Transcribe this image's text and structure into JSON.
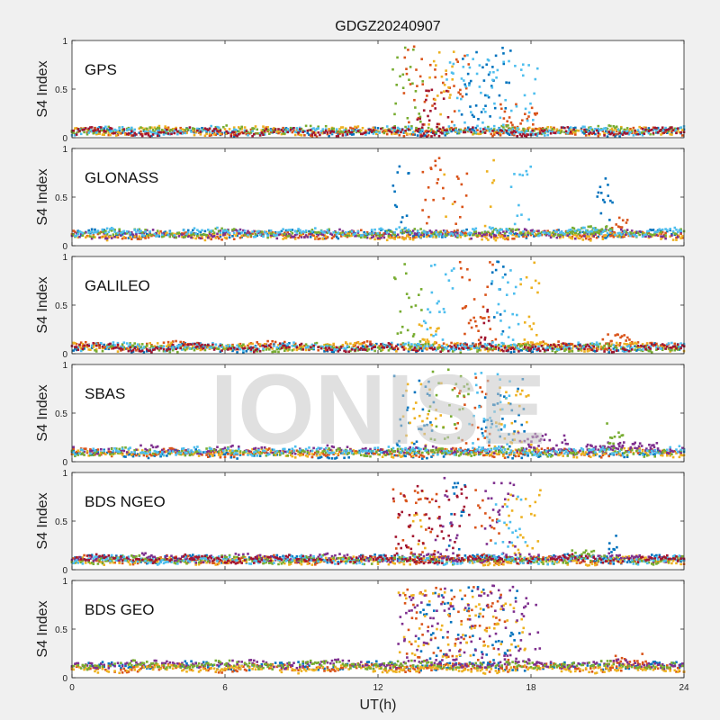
{
  "chart_data": {
    "type": "scatter",
    "title": "GDGZ20240907",
    "xlabel": "UT(h)",
    "ylabel": "S4 Index",
    "xlim": [
      0,
      24
    ],
    "ylim": [
      0,
      1
    ],
    "xticks": [
      "0",
      "6",
      "12",
      "18",
      "24"
    ],
    "yticks": [
      "0",
      "0.5",
      "1"
    ],
    "watermark": "IONISE",
    "colors": [
      "#0072bd",
      "#d95319",
      "#edb120",
      "#7e2f8e",
      "#77ac30",
      "#4dbeee",
      "#a2142f"
    ],
    "panels": [
      {
        "name": "GPS",
        "baseline": 0.07,
        "series": [
          {
            "color": 0,
            "base": 0.06,
            "bursts": [
              [
                15.2,
                17.2,
                0.95
              ]
            ]
          },
          {
            "color": 1,
            "base": 0.06,
            "bursts": [
              [
                13.0,
                15.6,
                0.95
              ],
              [
                16.8,
                18.5,
                0.35
              ]
            ]
          },
          {
            "color": 2,
            "base": 0.07,
            "bursts": [
              [
                14.0,
                15.0,
                0.9
              ]
            ]
          },
          {
            "color": 4,
            "base": 0.08,
            "bursts": [
              [
                12.6,
                13.8,
                0.95
              ]
            ]
          },
          {
            "color": 5,
            "base": 0.07,
            "bursts": [
              [
                14.7,
                18.3,
                0.85
              ]
            ]
          },
          {
            "color": 6,
            "base": 0.06,
            "bursts": [
              [
                13.5,
                14.8,
                0.5
              ]
            ]
          }
        ]
      },
      {
        "name": "GLONASS",
        "baseline": 0.12,
        "series": [
          {
            "color": 0,
            "base": 0.12,
            "bursts": [
              [
                12.6,
                13.3,
                0.9
              ],
              [
                20.6,
                21.2,
                0.7
              ]
            ]
          },
          {
            "color": 1,
            "base": 0.11,
            "bursts": [
              [
                13.6,
                14.6,
                0.95
              ],
              [
                15.0,
                15.5,
                0.9
              ],
              [
                21.2,
                21.8,
                0.3
              ]
            ]
          },
          {
            "color": 2,
            "base": 0.1,
            "bursts": [
              [
                14.6,
                15.0,
                0.95
              ],
              [
                16.2,
                16.6,
                0.9
              ]
            ]
          },
          {
            "color": 3,
            "base": 0.12,
            "bursts": []
          },
          {
            "color": 4,
            "base": 0.13,
            "bursts": [
              [
                19.5,
                21.0,
                0.2
              ]
            ]
          },
          {
            "color": 5,
            "base": 0.14,
            "bursts": [
              [
                17.2,
                18.0,
                0.95
              ]
            ]
          }
        ]
      },
      {
        "name": "GALILEO",
        "baseline": 0.07,
        "series": [
          {
            "color": 0,
            "base": 0.06,
            "bursts": [
              [
                16.4,
                17.0,
                0.95
              ]
            ]
          },
          {
            "color": 1,
            "base": 0.08,
            "bursts": [
              [
                15.2,
                16.6,
                0.95
              ],
              [
                20.8,
                22.0,
                0.2
              ]
            ]
          },
          {
            "color": 2,
            "base": 0.07,
            "bursts": [
              [
                13.6,
                14.4,
                0.3
              ],
              [
                17.6,
                18.4,
                0.95
              ]
            ]
          },
          {
            "color": 4,
            "base": 0.06,
            "bursts": [
              [
                12.6,
                13.8,
                0.95
              ]
            ]
          },
          {
            "color": 5,
            "base": 0.07,
            "bursts": [
              [
                13.8,
                15.0,
                0.95
              ],
              [
                16.5,
                17.6,
                0.95
              ]
            ]
          },
          {
            "color": 6,
            "base": 0.06,
            "bursts": [
              [
                16.0,
                16.4,
                0.6
              ]
            ]
          }
        ]
      },
      {
        "name": "SBAS",
        "baseline": 0.1,
        "series": [
          {
            "color": 0,
            "base": 0.08,
            "bursts": [
              [
                12.6,
                14.2,
                0.9
              ],
              [
                16.0,
                17.8,
                0.9
              ]
            ]
          },
          {
            "color": 1,
            "base": 0.09,
            "bursts": [
              [
                15.0,
                16.4,
                0.9
              ]
            ]
          },
          {
            "color": 2,
            "base": 0.09,
            "bursts": [
              [
                13.0,
                14.6,
                0.85
              ],
              [
                16.6,
                18.0,
                0.8
              ]
            ]
          },
          {
            "color": 3,
            "base": 0.12,
            "bursts": [
              [
                17.5,
                19.5,
                0.3
              ],
              [
                20.2,
                23.0,
                0.2
              ]
            ]
          },
          {
            "color": 4,
            "base": 0.1,
            "bursts": [
              [
                14.0,
                15.6,
                0.95
              ],
              [
                21.0,
                21.6,
                0.4
              ]
            ]
          },
          {
            "color": 5,
            "base": 0.11,
            "bursts": [
              [
                15.6,
                17.2,
                0.95
              ]
            ]
          }
        ]
      },
      {
        "name": "BDS NGEO",
        "baseline": 0.12,
        "series": [
          {
            "color": 0,
            "base": 0.11,
            "bursts": [
              [
                14.8,
                15.4,
                0.9
              ],
              [
                21.0,
                21.4,
                0.35
              ]
            ]
          },
          {
            "color": 1,
            "base": 0.1,
            "bursts": [
              [
                12.6,
                14.4,
                0.85
              ],
              [
                15.8,
                16.8,
                0.85
              ]
            ]
          },
          {
            "color": 2,
            "base": 0.09,
            "bursts": [
              [
                13.4,
                13.9,
                0.9
              ],
              [
                17.0,
                18.4,
                0.9
              ]
            ]
          },
          {
            "color": 3,
            "base": 0.12,
            "bursts": [
              [
                14.2,
                15.2,
                0.95
              ],
              [
                16.2,
                17.4,
                0.9
              ]
            ]
          },
          {
            "color": 4,
            "base": 0.1,
            "bursts": [
              [
                19.5,
                20.5,
                0.2
              ]
            ]
          },
          {
            "color": 5,
            "base": 0.1,
            "bursts": [
              [
                16.6,
                17.8,
                0.8
              ]
            ]
          },
          {
            "color": 6,
            "base": 0.11,
            "bursts": [
              [
                12.6,
                15.6,
                0.9
              ]
            ]
          }
        ]
      },
      {
        "name": "BDS GEO",
        "baseline": 0.13,
        "series": [
          {
            "color": 0,
            "base": 0.12,
            "bursts": [
              [
                13.6,
                17.6,
                0.95
              ]
            ]
          },
          {
            "color": 1,
            "base": 0.1,
            "bursts": [
              [
                13.0,
                17.2,
                0.95
              ],
              [
                21.0,
                22.6,
                0.25
              ]
            ]
          },
          {
            "color": 2,
            "base": 0.09,
            "bursts": [
              [
                12.8,
                17.8,
                0.9
              ]
            ]
          },
          {
            "color": 3,
            "base": 0.14,
            "bursts": [
              [
                12.8,
                18.4,
                0.95
              ]
            ]
          },
          {
            "color": 4,
            "base": 0.13,
            "bursts": []
          }
        ]
      }
    ]
  }
}
